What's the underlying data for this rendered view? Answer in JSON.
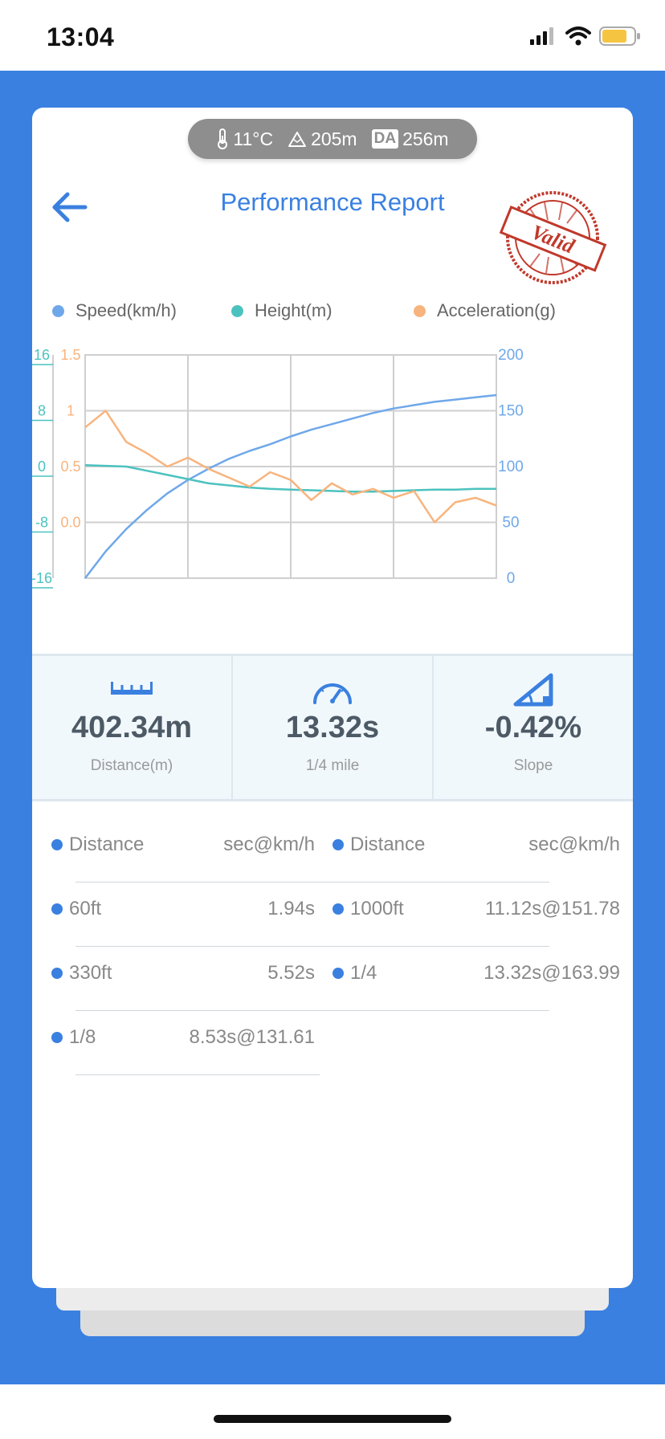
{
  "status": {
    "time": "13:04"
  },
  "weather": {
    "temperature": "11°C",
    "altitude": "205m",
    "da_badge": "DA",
    "density_altitude": "256m"
  },
  "header": {
    "title": "Performance Report",
    "stamp_text": "Valid"
  },
  "legend": [
    {
      "label": "Speed(km/h)",
      "color": "#6fa8ea"
    },
    {
      "label": "Height(m)",
      "color": "#4cc2bf"
    },
    {
      "label": "Acceleration(g)",
      "color": "#f7b47e"
    }
  ],
  "chart_data": {
    "type": "line",
    "x": [
      0,
      10,
      20,
      30,
      40,
      50,
      60,
      70,
      80,
      90,
      100,
      110,
      120,
      130,
      140,
      150,
      160,
      170,
      180,
      190,
      200
    ],
    "series": [
      {
        "name": "Speed(km/h)",
        "axis": "right",
        "values": [
          0,
          24,
          44,
          61,
          76,
          88,
          98,
          107,
          114,
          120,
          127,
          133,
          138,
          143,
          148,
          152,
          155,
          158,
          160,
          162,
          164
        ]
      },
      {
        "name": "Height(m)",
        "axis": "left",
        "values": [
          0.2,
          0.1,
          0,
          -0.6,
          -1.2,
          -1.8,
          -2.4,
          -2.7,
          -3.0,
          -3.2,
          -3.3,
          -3.4,
          -3.5,
          -3.6,
          -3.6,
          -3.5,
          -3.4,
          -3.3,
          -3.3,
          -3.2,
          -3.2
        ]
      },
      {
        "name": "Acceleration(g)",
        "axis": "left2",
        "values": [
          0.85,
          1.0,
          0.72,
          0.62,
          0.5,
          0.58,
          0.48,
          0.4,
          0.32,
          0.45,
          0.38,
          0.2,
          0.35,
          0.25,
          0.3,
          0.22,
          0.28,
          0.0,
          0.18,
          0.22,
          0.15
        ]
      }
    ],
    "axes": {
      "left_outer": {
        "ticks": [
          "16",
          "8",
          "0",
          "-8",
          "-16"
        ],
        "range": [
          -16,
          16
        ],
        "color": "#4cc2bf"
      },
      "left_inner": {
        "ticks": [
          "1.5",
          "1",
          "0.5",
          "0.0"
        ],
        "range": [
          -0.5,
          1.5
        ],
        "color": "#f7b47e"
      },
      "right": {
        "ticks": [
          "200",
          "150",
          "100",
          "50",
          "0"
        ],
        "range": [
          0,
          200
        ],
        "color": "#6fa8ea"
      }
    },
    "grid": true
  },
  "stats": [
    {
      "value": "402.34m",
      "label": "Distance(m)",
      "icon": "ruler-icon"
    },
    {
      "value": "13.32s",
      "label": "1/4 mile",
      "icon": "speedometer-icon"
    },
    {
      "value": "-0.42%",
      "label": "Slope",
      "icon": "slope-icon"
    }
  ],
  "table": {
    "header": {
      "name": "Distance",
      "value": "sec@km/h"
    },
    "left": [
      {
        "name": "60ft",
        "value": "1.94s"
      },
      {
        "name": "330ft",
        "value": "5.52s"
      },
      {
        "name": "1/8",
        "value": "8.53s@131.61"
      }
    ],
    "right": [
      {
        "name": "1000ft",
        "value": "11.12s@151.78"
      },
      {
        "name": "1/4",
        "value": "13.32s@163.99"
      }
    ]
  }
}
